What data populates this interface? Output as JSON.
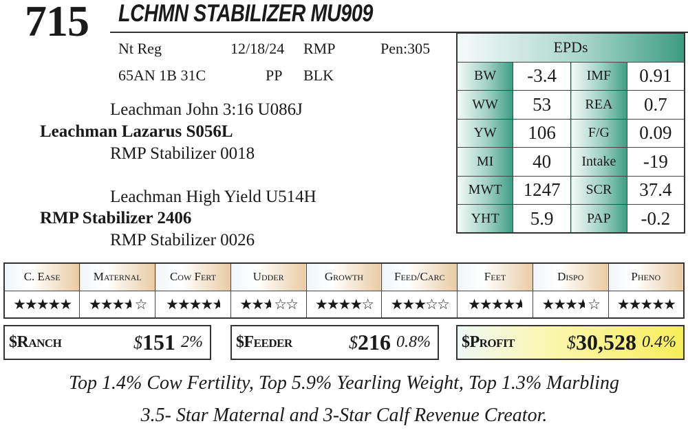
{
  "lot_number": "715",
  "animal_name": "LCHMN STABILIZER MU909",
  "info": {
    "registration": "Nt Reg",
    "birth_date": "12/18/24",
    "breeder": "RMP",
    "pen": "Pen:305",
    "breed_comp": "65AN 1B 31C",
    "polled": "PP",
    "color": "BLK"
  },
  "pedigree": {
    "sire_sire": "Leachman John 3:16 U086J",
    "sire": "Leachman Lazarus S056L",
    "sire_dam": "RMP Stabilizer 0018",
    "dam_sire": "Leachman High Yield U514H",
    "dam": "RMP Stabilizer 2406",
    "dam_dam": "RMP Stabilizer 0026"
  },
  "epds": {
    "title": "EPDs",
    "rows": [
      {
        "l1": "BW",
        "v1": "-3.4",
        "l2": "IMF",
        "v2": "0.91"
      },
      {
        "l1": "WW",
        "v1": "53",
        "l2": "REA",
        "v2": "0.7"
      },
      {
        "l1": "YW",
        "v1": "106",
        "l2": "F/G",
        "v2": "0.09"
      },
      {
        "l1": "MI",
        "v1": "40",
        "l2": "Intake",
        "v2": "-19"
      },
      {
        "l1": "MWT",
        "v1": "1247",
        "l2": "SCR",
        "v2": "37.4"
      },
      {
        "l1": "YHT",
        "v1": "5.9",
        "l2": "PAP",
        "v2": "-0.2"
      }
    ]
  },
  "ratings": [
    {
      "label": "C. Ease",
      "stars": 5
    },
    {
      "label": "Maternal",
      "stars": 3.5
    },
    {
      "label": "Cow Fert",
      "stars": 4.5
    },
    {
      "label": "Udder",
      "stars": 2.5
    },
    {
      "label": "Growth",
      "stars": 4
    },
    {
      "label": "Feed/Carc",
      "stars": 3
    },
    {
      "label": "Feet",
      "stars": 4.5
    },
    {
      "label": "Dispo",
      "stars": 3.5
    },
    {
      "label": "Pheno",
      "stars": 5
    }
  ],
  "indexes": [
    {
      "label": "$Ranch",
      "dollar": "$",
      "value": "151",
      "percentile": "2%"
    },
    {
      "label": "$Feeder",
      "dollar": "$",
      "value": "216",
      "percentile": "0.8%"
    },
    {
      "label": "$Profit",
      "dollar": "$",
      "value": "30,528",
      "percentile": "0.4%",
      "highlight": "#f7ee5a"
    }
  ],
  "footer": {
    "line1": "Top 1.4% Cow Fertility, Top 5.9% Yearling Weight, Top 1.3% Marbling",
    "line2": "3.5- Star Maternal and 3-Star Calf Revenue Creator."
  }
}
